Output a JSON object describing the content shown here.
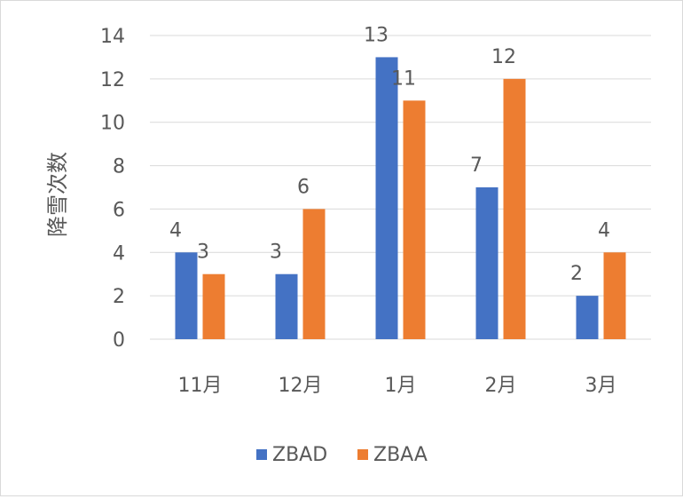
{
  "chart_data": {
    "type": "bar",
    "ylabel": "降雪次数",
    "categories": [
      "11月",
      "12月",
      "1月",
      "2月",
      "3月"
    ],
    "series": [
      {
        "name": "ZBAD",
        "values": [
          4,
          3,
          13,
          7,
          2
        ],
        "color": "#4472C4"
      },
      {
        "name": "ZBAA",
        "values": [
          3,
          6,
          11,
          12,
          4
        ],
        "color": "#ED7D31"
      }
    ],
    "ylim": [
      0,
      14
    ],
    "yticks": [
      0,
      2,
      4,
      6,
      8,
      10,
      12,
      14
    ],
    "grid": true,
    "legend": "bottom",
    "gridColor": "#d9d9d9",
    "textColor": "#595959"
  }
}
